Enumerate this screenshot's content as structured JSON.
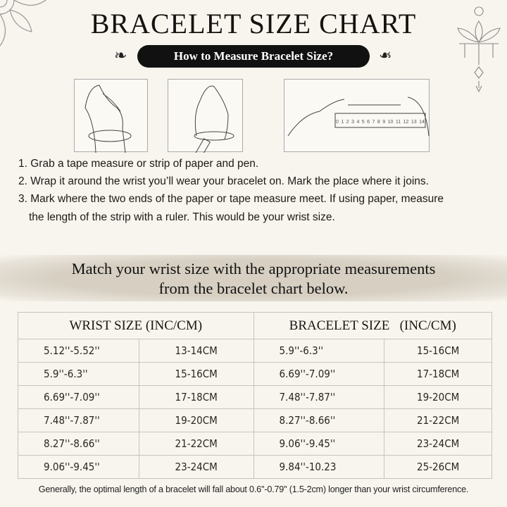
{
  "title": "BRACELET SIZE CHART",
  "subtitle": "How to Measure Bracelet Size?",
  "ruler_numbers": [
    "0",
    "1",
    "2",
    "3",
    "4",
    "5",
    "6",
    "7",
    "8",
    "9",
    "10",
    "11",
    "12",
    "13",
    "14"
  ],
  "steps": [
    "1. Grab a tape measure or strip of paper and pen.",
    "2. Wrap it around the wrist you’ll wear your bracelet on. Mark the place where it joins.",
    "3. Mark where the two ends of the paper or tape measure meet. If using paper, measure",
    "the length of the strip with a ruler. This would be your wrist size."
  ],
  "match_line1": "Match your wrist size with the appropriate measurements",
  "match_line2": "from the bracelet chart below.",
  "table": {
    "headers": [
      "WRIST SIZE (INC/CM)",
      "BRACELET SIZE   (INC/CM)"
    ],
    "rows": [
      [
        "5.12''-5.52''",
        "13-14CM",
        "5.9''-6.3''",
        "15-16CM"
      ],
      [
        "5.9''-6.3''",
        "15-16CM",
        "6.69''-7.09''",
        "17-18CM"
      ],
      [
        "6.69''-7.09''",
        "17-18CM",
        "7.48''-7.87''",
        "19-20CM"
      ],
      [
        "7.48''-7.87''",
        "19-20CM",
        "8.27''-8.66''",
        "21-22CM"
      ],
      [
        "8.27''-8.66''",
        "21-22CM",
        "9.06''-9.45''",
        "23-24CM"
      ],
      [
        "9.06''-9.45''",
        "23-24CM",
        "9.84''-10.23",
        "25-26CM"
      ]
    ]
  },
  "footnote": "Generally, the optimal length of a bracelet will fall about 0.6''-0.79'' (1.5-2cm) longer than your wrist circumference."
}
